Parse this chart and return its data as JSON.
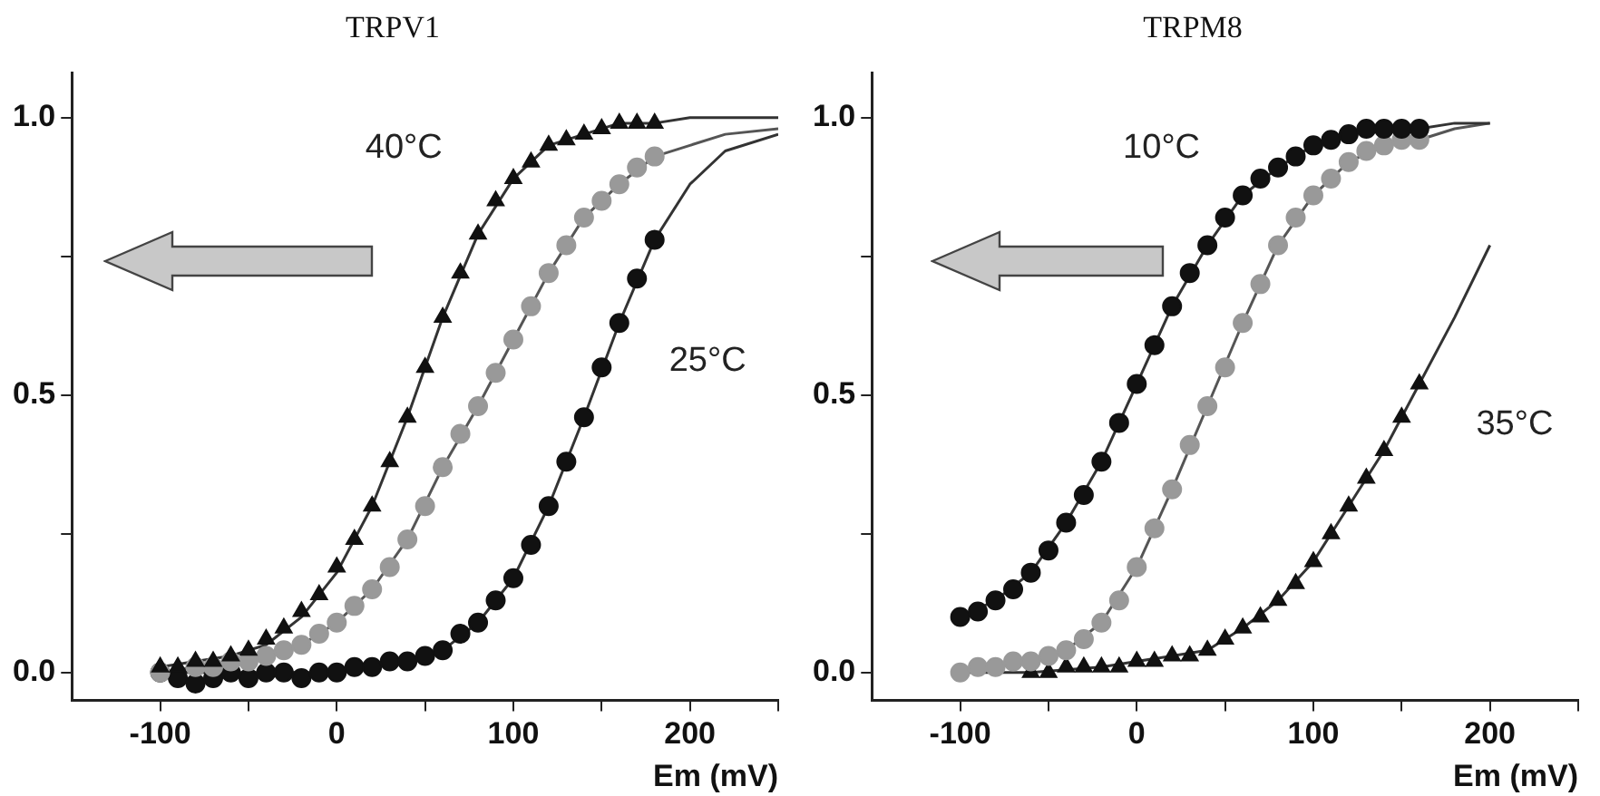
{
  "chart_data": [
    {
      "type": "scatter",
      "title": "TRPV1",
      "xlabel": "Em (mV)",
      "xlim": [
        -150,
        250
      ],
      "ylim": [
        -0.05,
        1.08
      ],
      "xticks": [
        -100,
        {
          "value": -50,
          "label": null
        },
        0,
        {
          "value": 50,
          "label": null
        },
        100,
        {
          "value": 150,
          "label": null
        },
        200,
        {
          "value": 250,
          "label": null
        }
      ],
      "yticks": [
        {
          "value": 0,
          "label": "0.0"
        },
        {
          "value": 0.25,
          "label": null
        },
        {
          "value": 0.5,
          "label": "0.5"
        },
        {
          "value": 0.75,
          "label": null
        },
        {
          "value": 1,
          "label": "1.0"
        }
      ],
      "annotations": [
        "40°C",
        "25°C"
      ],
      "series": [
        {
          "type": "scatter",
          "marker": "triangle",
          "color": "#111111",
          "x": [
            -100,
            -90,
            -80,
            -70,
            -60,
            -50,
            -40,
            -30,
            -20,
            -10,
            0,
            10,
            20,
            30,
            40,
            50,
            60,
            70,
            80,
            90,
            100,
            110,
            120,
            130,
            140,
            150,
            160,
            170,
            180
          ],
          "values": [
            0.01,
            0.01,
            0.02,
            0.02,
            0.03,
            0.04,
            0.06,
            0.08,
            0.11,
            0.14,
            0.19,
            0.24,
            0.3,
            0.38,
            0.46,
            0.55,
            0.64,
            0.72,
            0.79,
            0.85,
            0.89,
            0.92,
            0.95,
            0.96,
            0.97,
            0.98,
            0.99,
            0.99,
            0.99
          ]
        },
        {
          "type": "scatter",
          "marker": "circle",
          "color": "#999999",
          "x": [
            -100,
            -90,
            -80,
            -70,
            -60,
            -50,
            -40,
            -30,
            -20,
            -10,
            0,
            10,
            20,
            30,
            40,
            50,
            60,
            70,
            80,
            90,
            100,
            110,
            120,
            130,
            140,
            150,
            160,
            170,
            180
          ],
          "values": [
            0,
            null,
            0.01,
            0.01,
            0.02,
            0.02,
            0.03,
            0.04,
            0.05,
            0.07,
            0.09,
            0.12,
            0.15,
            0.19,
            0.24,
            0.3,
            0.37,
            0.43,
            0.48,
            0.54,
            0.6,
            0.66,
            0.72,
            0.77,
            0.82,
            0.85,
            0.88,
            0.91,
            0.93
          ]
        },
        {
          "type": "scatter",
          "marker": "circle",
          "color": "#111111",
          "x": [
            -100,
            -90,
            -80,
            -70,
            -60,
            -50,
            -40,
            -30,
            -20,
            -10,
            0,
            10,
            20,
            30,
            40,
            50,
            60,
            70,
            80,
            90,
            100,
            110,
            120,
            130,
            140,
            150,
            160,
            170,
            180
          ],
          "values": [
            0,
            -0.01,
            -0.02,
            -0.01,
            0,
            -0.01,
            0,
            0,
            -0.01,
            0,
            0,
            0.01,
            0.01,
            0.02,
            0.02,
            0.03,
            0.04,
            0.07,
            0.09,
            0.13,
            0.17,
            0.23,
            0.3,
            0.38,
            0.46,
            0.55,
            0.63,
            0.71,
            0.78
          ]
        },
        {
          "type": "line",
          "marker": "none",
          "color": "#333333",
          "x": [
            -100,
            -80,
            -60,
            -40,
            -20,
            0,
            20,
            40,
            60,
            80,
            100,
            120,
            140,
            160,
            180,
            200,
            250
          ],
          "values": [
            0.01,
            0.02,
            0.03,
            0.05,
            0.1,
            0.18,
            0.3,
            0.46,
            0.64,
            0.79,
            0.89,
            0.95,
            0.97,
            0.99,
            0.99,
            1,
            1
          ]
        },
        {
          "type": "line",
          "marker": "none",
          "color": "#555555",
          "x": [
            -100,
            -80,
            -60,
            -40,
            -20,
            0,
            20,
            40,
            60,
            80,
            100,
            120,
            140,
            160,
            180,
            200,
            220,
            250
          ],
          "values": [
            0,
            0.01,
            0.02,
            0.03,
            0.05,
            0.09,
            0.15,
            0.24,
            0.37,
            0.48,
            0.6,
            0.72,
            0.82,
            0.88,
            0.93,
            0.95,
            0.97,
            0.98
          ]
        },
        {
          "type": "line",
          "marker": "none",
          "color": "#333333",
          "x": [
            -100,
            -60,
            -20,
            0,
            20,
            40,
            60,
            80,
            100,
            120,
            140,
            160,
            180,
            200,
            220,
            250
          ],
          "values": [
            0,
            0,
            0,
            0,
            0.01,
            0.02,
            0.04,
            0.09,
            0.17,
            0.3,
            0.46,
            0.63,
            0.78,
            0.88,
            0.94,
            0.97
          ]
        }
      ]
    },
    {
      "type": "scatter",
      "title": "TRPM8",
      "xlabel": "Em (mV)",
      "xlim": [
        -150,
        250
      ],
      "ylim": [
        -0.05,
        1.08
      ],
      "xticks": [
        -100,
        {
          "value": -50,
          "label": null
        },
        0,
        {
          "value": 50,
          "label": null
        },
        100,
        {
          "value": 150,
          "label": null
        },
        200,
        {
          "value": 250,
          "label": null
        }
      ],
      "yticks": [
        {
          "value": 0,
          "label": "0.0"
        },
        {
          "value": 0.25,
          "label": null
        },
        {
          "value": 0.5,
          "label": "0.5"
        },
        {
          "value": 0.75,
          "label": null
        },
        {
          "value": 1,
          "label": "1.0"
        }
      ],
      "annotations": [
        "10°C",
        "35°C"
      ],
      "series": [
        {
          "type": "scatter",
          "marker": "circle",
          "color": "#111111",
          "x": [
            -100,
            -90,
            -80,
            -70,
            -60,
            -50,
            -40,
            -30,
            -20,
            -10,
            0,
            10,
            20,
            30,
            40,
            50,
            60,
            70,
            80,
            90,
            100,
            110,
            120,
            130,
            140,
            150,
            160
          ],
          "values": [
            0.1,
            0.11,
            0.13,
            0.15,
            0.18,
            0.22,
            0.27,
            0.32,
            0.38,
            0.45,
            0.52,
            0.59,
            0.66,
            0.72,
            0.77,
            0.82,
            0.86,
            0.89,
            0.91,
            0.93,
            0.95,
            0.96,
            0.97,
            0.98,
            0.98,
            0.98,
            0.98
          ]
        },
        {
          "type": "scatter",
          "marker": "circle",
          "color": "#999999",
          "x": [
            -100,
            -90,
            -80,
            -70,
            -60,
            -50,
            -40,
            -30,
            -20,
            -10,
            0,
            10,
            20,
            30,
            40,
            50,
            60,
            70,
            80,
            90,
            100,
            110,
            120,
            130,
            140,
            150,
            160
          ],
          "values": [
            0,
            0.01,
            0.01,
            0.02,
            0.02,
            0.03,
            0.04,
            0.06,
            0.09,
            0.13,
            0.19,
            0.26,
            0.33,
            0.41,
            0.48,
            0.55,
            0.63,
            0.7,
            0.77,
            0.82,
            0.86,
            0.89,
            0.92,
            0.94,
            0.95,
            0.96,
            0.96
          ]
        },
        {
          "type": "scatter",
          "marker": "triangle",
          "color": "#111111",
          "x": [
            -60,
            -50,
            -40,
            -30,
            -20,
            -10,
            0,
            10,
            20,
            30,
            40,
            50,
            60,
            70,
            80,
            90,
            100,
            110,
            120,
            130,
            140,
            150,
            160
          ],
          "values": [
            0,
            0,
            0.01,
            0.01,
            0.01,
            0.01,
            0.02,
            0.02,
            0.03,
            0.03,
            0.04,
            0.06,
            0.08,
            0.1,
            0.13,
            0.16,
            0.2,
            0.25,
            0.3,
            0.35,
            0.4,
            0.46,
            0.52
          ]
        },
        {
          "type": "line",
          "marker": "none",
          "color": "#333333",
          "x": [
            -100,
            -80,
            -60,
            -40,
            -20,
            0,
            20,
            40,
            60,
            80,
            100,
            120,
            140,
            160,
            180,
            200
          ],
          "values": [
            0.1,
            0.13,
            0.18,
            0.27,
            0.38,
            0.52,
            0.66,
            0.77,
            0.86,
            0.91,
            0.95,
            0.97,
            0.98,
            0.98,
            0.99,
            0.99
          ]
        },
        {
          "type": "line",
          "marker": "none",
          "color": "#555555",
          "x": [
            -100,
            -80,
            -60,
            -40,
            -20,
            0,
            20,
            40,
            60,
            80,
            100,
            120,
            140,
            160,
            180,
            200
          ],
          "values": [
            0,
            0.01,
            0.02,
            0.04,
            0.09,
            0.19,
            0.33,
            0.48,
            0.63,
            0.77,
            0.86,
            0.92,
            0.95,
            0.96,
            0.98,
            0.99
          ]
        },
        {
          "type": "line",
          "marker": "none",
          "color": "#333333",
          "x": [
            -100,
            -60,
            -20,
            0,
            20,
            40,
            60,
            80,
            100,
            120,
            140,
            160,
            180,
            200
          ],
          "values": [
            0,
            0,
            0.01,
            0.02,
            0.03,
            0.04,
            0.08,
            0.13,
            0.2,
            0.3,
            0.4,
            0.52,
            0.64,
            0.77
          ]
        }
      ]
    }
  ]
}
